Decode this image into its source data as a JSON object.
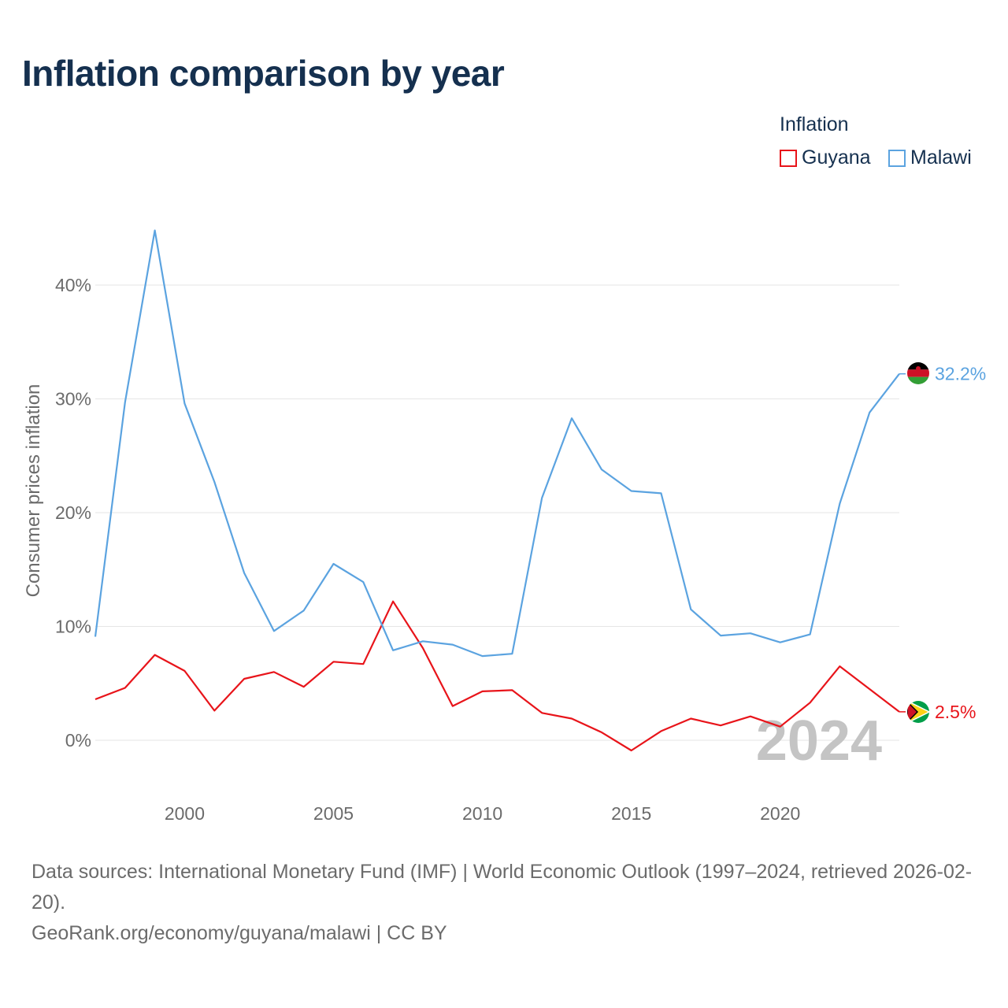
{
  "title": "Inflation comparison by year",
  "legend": {
    "title": "Inflation",
    "items": [
      {
        "label": "Guyana",
        "color": "#e8141a"
      },
      {
        "label": "Malawi",
        "color": "#5ba3e0"
      }
    ]
  },
  "chart_data": {
    "type": "line",
    "title": "Inflation comparison by year",
    "ylabel": "Consumer prices inflation",
    "xlabel": "",
    "ylim": [
      -4.5,
      47
    ],
    "xlim": [
      1997,
      2024
    ],
    "y_ticks": [
      0,
      10,
      20,
      30,
      40
    ],
    "y_tick_labels": [
      "0%",
      "10%",
      "20%",
      "30%",
      "40%"
    ],
    "x_ticks": [
      2000,
      2005,
      2010,
      2015,
      2020
    ],
    "x_tick_labels": [
      "2000",
      "2005",
      "2010",
      "2015",
      "2020"
    ],
    "x": [
      1997,
      1998,
      1999,
      2000,
      2001,
      2002,
      2003,
      2004,
      2005,
      2006,
      2007,
      2008,
      2009,
      2010,
      2011,
      2012,
      2013,
      2014,
      2015,
      2016,
      2017,
      2018,
      2019,
      2020,
      2021,
      2022,
      2023,
      2024
    ],
    "series": [
      {
        "name": "Guyana",
        "color": "#e8141a",
        "end_label": "2.5%",
        "values": [
          3.6,
          4.6,
          7.5,
          6.1,
          2.6,
          5.4,
          6.0,
          4.7,
          6.9,
          6.7,
          12.2,
          8.1,
          3.0,
          4.3,
          4.4,
          2.4,
          1.9,
          0.7,
          -0.9,
          0.8,
          1.9,
          1.3,
          2.1,
          1.2,
          3.3,
          6.5,
          4.5,
          2.5
        ]
      },
      {
        "name": "Malawi",
        "color": "#5ba3e0",
        "end_label": "32.2%",
        "values": [
          9.1,
          29.7,
          44.8,
          29.6,
          22.7,
          14.7,
          9.6,
          11.4,
          15.5,
          13.9,
          7.9,
          8.7,
          8.4,
          7.4,
          7.6,
          21.3,
          28.3,
          23.8,
          21.9,
          21.7,
          11.5,
          9.2,
          9.4,
          8.6,
          9.3,
          20.8,
          28.8,
          32.2
        ]
      }
    ],
    "annotation": "2024",
    "grid": true
  },
  "footer": {
    "line1": "Data sources: International Monetary Fund (IMF) | World Economic Outlook (1997–2024, retrieved 2026-02-20).",
    "line2": "GeoRank.org/economy/guyana/malawi | CC BY"
  }
}
